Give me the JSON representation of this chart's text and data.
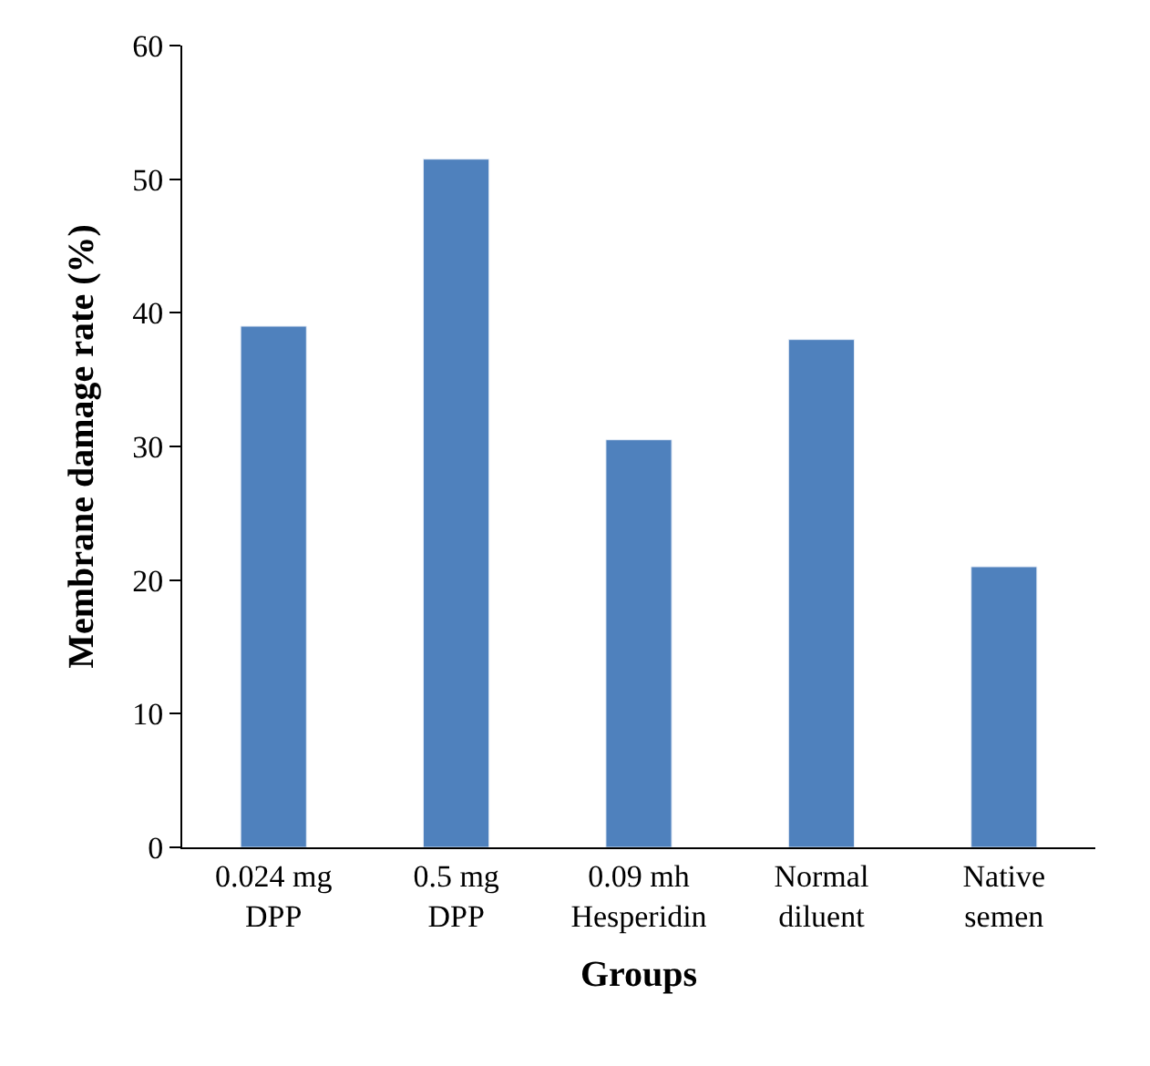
{
  "chart_data": {
    "type": "bar",
    "xlabel": "Groups",
    "ylabel": "Membrane damage rate (%)",
    "categories": [
      "0.024 mg DPP",
      "0.5 mg DPP",
      "0.09 mh Hesperidin",
      "Normal diluent",
      "Native semen"
    ],
    "values": [
      39,
      51.5,
      30.5,
      38,
      21
    ],
    "color": "#4f81bd",
    "ylim": [
      0,
      60
    ],
    "yticks": [
      0,
      10,
      20,
      30,
      40,
      50,
      60
    ]
  }
}
